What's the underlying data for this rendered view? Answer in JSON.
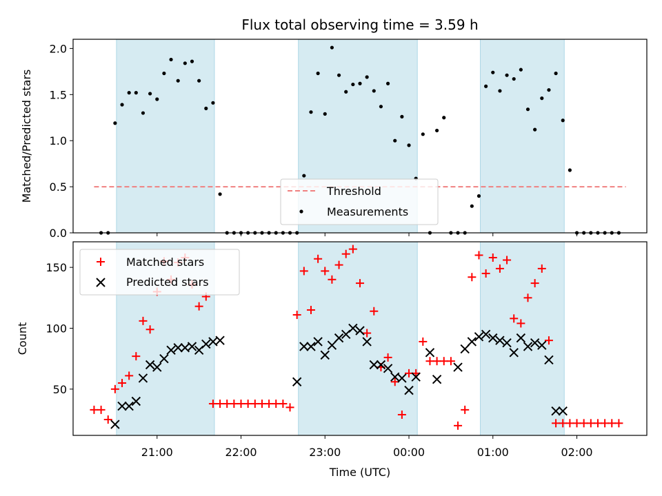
{
  "chart_data": [
    {
      "type": "scatter",
      "title": "Flux total observing time = 3.59 h",
      "xlabel": "",
      "ylabel": "Matched/Predicted stars",
      "ylim": [
        0,
        2.1
      ],
      "yticks": [
        "0.0",
        "0.5",
        "1.0",
        "1.5",
        "2.0"
      ],
      "legend_position": "bottom-center",
      "shaded_intervals": [
        [
          "20:31",
          "21:41"
        ],
        [
          "22:41",
          "00:06"
        ],
        [
          "00:51",
          "01:51"
        ]
      ],
      "threshold": {
        "name": "Threshold",
        "value": 0.5,
        "color": "#f08080",
        "style": "dashed"
      },
      "series": [
        {
          "name": "Measurements",
          "color": "#000000",
          "marker": "dot",
          "x": [
            "20:20",
            "20:25",
            "20:30",
            "20:35",
            "20:40",
            "20:45",
            "20:50",
            "20:55",
            "21:00",
            "21:05",
            "21:10",
            "21:15",
            "21:20",
            "21:25",
            "21:30",
            "21:35",
            "21:40",
            "21:45",
            "21:50",
            "21:55",
            "22:00",
            "22:05",
            "22:10",
            "22:15",
            "22:20",
            "22:25",
            "22:30",
            "22:35",
            "22:40",
            "22:45",
            "22:50",
            "22:55",
            "23:00",
            "23:05",
            "23:10",
            "23:15",
            "23:20",
            "23:25",
            "23:30",
            "23:35",
            "23:40",
            "23:45",
            "23:50",
            "23:55",
            "00:00",
            "00:05",
            "00:10",
            "00:15",
            "00:20",
            "00:25",
            "00:30",
            "00:35",
            "00:40",
            "00:45",
            "00:50",
            "00:55",
            "01:00",
            "01:05",
            "01:10",
            "01:15",
            "01:20",
            "01:25",
            "01:30",
            "01:35",
            "01:40",
            "01:45",
            "01:50",
            "01:55",
            "02:00",
            "02:05",
            "02:10",
            "02:15",
            "02:20",
            "02:25",
            "02:30"
          ],
          "y": [
            0,
            0,
            1.19,
            1.39,
            1.52,
            1.52,
            1.3,
            1.51,
            1.45,
            1.73,
            1.88,
            1.65,
            1.84,
            1.86,
            1.65,
            1.35,
            1.41,
            0.42,
            0,
            0,
            0,
            0,
            0,
            0,
            0,
            0,
            0,
            0,
            0,
            0.62,
            1.31,
            1.73,
            1.29,
            2.01,
            1.71,
            1.53,
            1.61,
            1.62,
            1.69,
            1.54,
            1.37,
            1.62,
            1.0,
            1.26,
            0.95,
            0.59,
            1.07,
            0,
            1.11,
            1.25,
            0,
            0,
            0,
            0.29,
            0.4,
            1.59,
            1.74,
            1.54,
            1.71,
            1.67,
            1.77,
            1.34,
            1.12,
            1.46,
            1.55,
            1.73,
            1.22,
            0.68,
            0,
            0,
            0,
            0,
            0,
            0,
            0
          ]
        }
      ]
    },
    {
      "type": "scatter",
      "title": "",
      "xlabel": "Time (UTC)",
      "ylabel": "Count",
      "ylim": [
        12,
        171
      ],
      "yticks": [
        "50",
        "100",
        "150"
      ],
      "xticks": [
        "21:00",
        "22:00",
        "23:00",
        "00:00",
        "01:00",
        "02:00"
      ],
      "legend_position": "top-left",
      "series": [
        {
          "name": "Matched stars",
          "color": "#ff0000",
          "marker": "plus",
          "x": [
            "20:15",
            "20:20",
            "20:25",
            "20:30",
            "20:35",
            "20:40",
            "20:45",
            "20:50",
            "20:55",
            "21:00",
            "21:05",
            "21:10",
            "21:15",
            "21:20",
            "21:25",
            "21:30",
            "21:35",
            "21:40",
            "21:45",
            "21:50",
            "21:55",
            "22:00",
            "22:05",
            "22:10",
            "22:15",
            "22:20",
            "22:25",
            "22:30",
            "22:35",
            "22:40",
            "22:45",
            "22:50",
            "22:55",
            "23:00",
            "23:05",
            "23:10",
            "23:15",
            "23:20",
            "23:25",
            "23:30",
            "23:35",
            "23:40",
            "23:45",
            "23:50",
            "23:55",
            "00:00",
            "00:05",
            "00:10",
            "00:15",
            "00:20",
            "00:25",
            "00:30",
            "00:35",
            "00:40",
            "00:45",
            "00:50",
            "00:55",
            "01:00",
            "01:05",
            "01:10",
            "01:15",
            "01:20",
            "01:25",
            "01:30",
            "01:35",
            "01:40",
            "01:45",
            "01:50",
            "01:55",
            "02:00",
            "02:05",
            "02:10",
            "02:15",
            "02:20",
            "02:25",
            "02:30"
          ],
          "y": [
            33,
            33,
            25,
            50,
            55,
            61,
            77,
            106,
            99,
            130,
            155,
            140,
            154,
            158,
            136,
            118,
            126,
            38,
            38,
            38,
            38,
            38,
            38,
            38,
            38,
            38,
            38,
            38,
            35,
            111,
            147,
            115,
            157,
            147,
            140,
            152,
            161,
            165,
            137,
            96,
            114,
            68,
            76,
            56,
            29,
            63,
            63,
            89,
            73,
            73,
            73,
            73,
            20,
            33,
            142,
            160,
            145,
            158,
            149,
            156,
            108,
            104,
            125,
            137,
            149,
            90,
            22,
            22,
            22,
            22,
            22,
            22,
            22,
            22,
            22,
            22
          ]
        },
        {
          "name": "Predicted stars",
          "color": "#000000",
          "marker": "x",
          "x": [
            "20:30",
            "20:35",
            "20:40",
            "20:45",
            "20:50",
            "20:55",
            "21:00",
            "21:05",
            "21:10",
            "21:15",
            "21:20",
            "21:25",
            "21:30",
            "21:35",
            "21:40",
            "21:45",
            "22:40",
            "22:45",
            "22:50",
            "22:55",
            "23:00",
            "23:05",
            "23:10",
            "23:15",
            "23:20",
            "23:25",
            "23:30",
            "23:35",
            "23:40",
            "23:45",
            "23:50",
            "23:55",
            "00:00",
            "00:05",
            "00:15",
            "00:20",
            "00:35",
            "00:40",
            "00:45",
            "00:50",
            "00:55",
            "01:00",
            "01:05",
            "01:10",
            "01:15",
            "01:20",
            "01:25",
            "01:30",
            "01:35",
            "01:40",
            "01:45",
            "01:50"
          ],
          "y": [
            21,
            36,
            36,
            40,
            59,
            70,
            68,
            75,
            82,
            84,
            84,
            85,
            82,
            87,
            89,
            90,
            56,
            85,
            85,
            89,
            78,
            86,
            92,
            95,
            100,
            98,
            89,
            70,
            70,
            67,
            60,
            59,
            49,
            60,
            80,
            58,
            68,
            83,
            89,
            93,
            95,
            92,
            90,
            88,
            80,
            92,
            85,
            88,
            86,
            74,
            32,
            32
          ]
        }
      ]
    }
  ]
}
